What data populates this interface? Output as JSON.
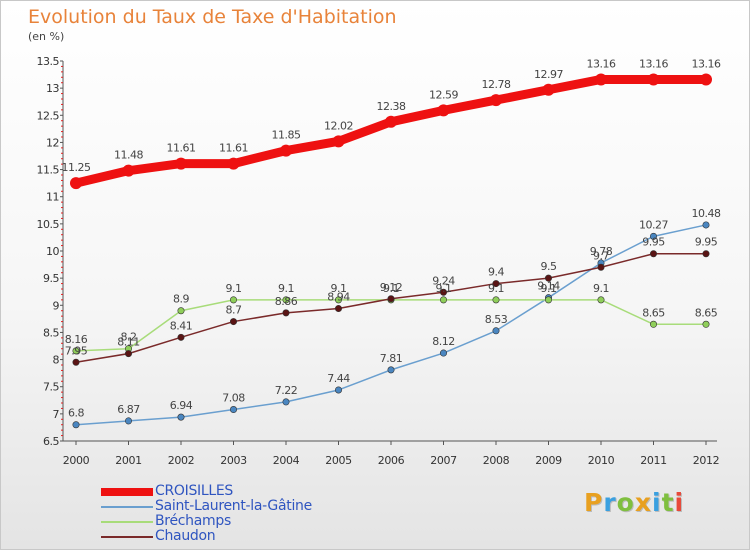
{
  "header": {
    "title": "Evolution du Taux de Taxe d'Habitation",
    "subtitle": "(en %)"
  },
  "logo": {
    "text": "Proxiti",
    "letter_colors": [
      "#e8a020",
      "#3aa0e0",
      "#7fbf3f",
      "#e8a020",
      "#3aa0e0",
      "#7fbf3f",
      "#e84a3a"
    ]
  },
  "chart_data": {
    "type": "line",
    "title": "Evolution du Taux de Taxe d'Habitation",
    "subtitle": "(en %)",
    "xlabel": "",
    "ylabel": "",
    "x": [
      2000,
      2001,
      2002,
      2003,
      2004,
      2005,
      2006,
      2007,
      2008,
      2009,
      2010,
      2011,
      2012
    ],
    "ylim": [
      6.5,
      13.5
    ],
    "yticks": [
      6.5,
      7,
      7.5,
      8,
      8.5,
      9,
      9.5,
      10,
      10.5,
      11,
      11.5,
      12,
      12.5,
      13,
      13.5
    ],
    "grid": false,
    "legend_position": "bottom-left",
    "series": [
      {
        "name": "CROISILLES",
        "color": "#ee1111",
        "emphasis": true,
        "values": [
          11.25,
          11.48,
          11.61,
          11.61,
          11.85,
          12.02,
          12.38,
          12.59,
          12.78,
          12.97,
          13.16,
          13.16,
          13.16
        ],
        "labels": [
          "11.25",
          "11.48",
          "11.61",
          "11.61",
          "11.85",
          "12.02",
          "12.38",
          "12.59",
          "12.78",
          "12.97",
          "13.16",
          "13.16",
          "13.16"
        ]
      },
      {
        "name": "Saint-Laurent-la-Gâtine",
        "color": "#6a9fcf",
        "marker": "#4a86c0",
        "values": [
          6.8,
          6.87,
          6.94,
          7.08,
          7.22,
          7.44,
          7.81,
          8.12,
          8.53,
          9.14,
          9.78,
          10.27,
          10.48
        ],
        "labels": [
          "6.8",
          "6.87",
          "6.94",
          "7.08",
          "7.22",
          "7.44",
          "7.81",
          "8.12",
          "8.53",
          "9.14",
          "9.78",
          "10.27",
          "10.48"
        ]
      },
      {
        "name": "Bréchamps",
        "color": "#a8dc7a",
        "marker": "#8fce5a",
        "values": [
          8.16,
          8.2,
          8.9,
          9.1,
          9.1,
          9.1,
          9.1,
          9.1,
          9.1,
          9.1,
          9.1,
          8.65,
          8.65
        ],
        "labels": [
          "8.16",
          "8.2",
          "8.9",
          "9.1",
          "9.1",
          "9.1",
          "9.1",
          "9.1",
          "9.1",
          "9.1",
          "9.1",
          "8.65",
          "8.65"
        ]
      },
      {
        "name": "Chaudon",
        "color": "#7a2a2a",
        "marker": "#5a1414",
        "values": [
          7.95,
          8.11,
          8.41,
          8.7,
          8.86,
          8.94,
          9.12,
          9.24,
          9.4,
          9.5,
          9.7,
          9.95,
          9.95
        ],
        "labels": [
          "7.95",
          "8.11",
          "8.41",
          "8.7",
          "8.86",
          "8.94",
          "9.12",
          "9.24",
          "9.4",
          "9.5",
          "9.7",
          "9.95",
          "9.95"
        ]
      }
    ]
  }
}
